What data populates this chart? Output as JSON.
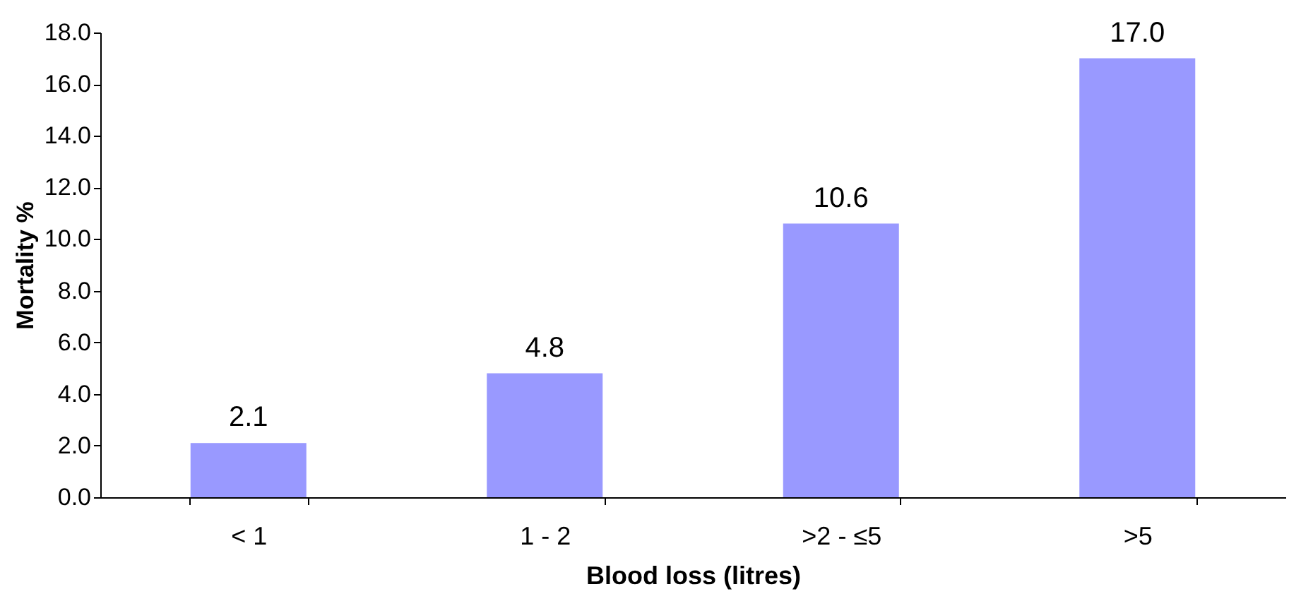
{
  "chart_data": {
    "type": "bar",
    "xlabel": "Blood loss (litres)",
    "ylabel": "Mortality %",
    "categories": [
      "< 1",
      "1 - 2",
      ">2 - ≤5",
      ">5"
    ],
    "values": [
      2.1,
      4.8,
      10.6,
      17.0
    ],
    "value_labels": [
      "2.1",
      "4.8",
      "10.6",
      "17.0"
    ],
    "color": "#9999ff",
    "ylim": [
      0,
      18
    ],
    "yticks": [
      {
        "value": 0,
        "label": "0.0"
      },
      {
        "value": 2,
        "label": "2.0"
      },
      {
        "value": 4,
        "label": "4.0"
      },
      {
        "value": 6,
        "label": "6.0"
      },
      {
        "value": 8,
        "label": "8.0"
      },
      {
        "value": 10,
        "label": "10.0"
      },
      {
        "value": 12,
        "label": "12.0"
      },
      {
        "value": 14,
        "label": "14.0"
      },
      {
        "value": 16,
        "label": "16.0"
      },
      {
        "value": 18,
        "label": "18.0"
      }
    ],
    "grid": false
  }
}
